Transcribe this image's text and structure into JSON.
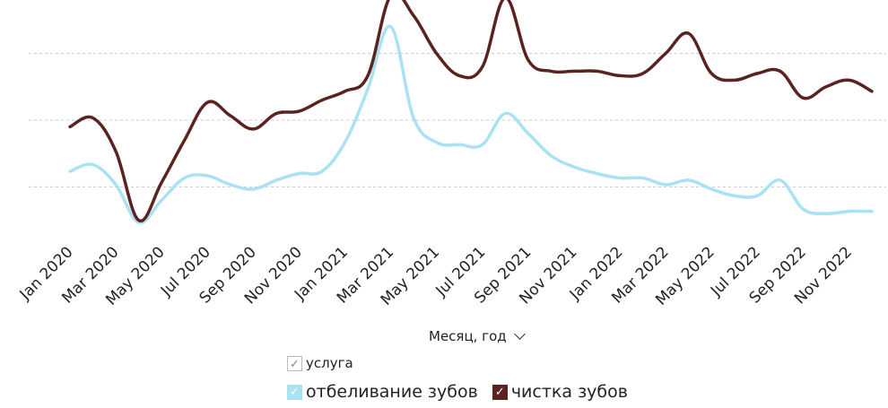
{
  "chart_data": {
    "type": "line",
    "title": "",
    "xlabel": "Месяц, год",
    "ylabel": "",
    "ylim": [
      0,
      100
    ],
    "grid": true,
    "legend_position": "bottom",
    "legend_title": "услуга",
    "tick_labels": [
      "Jan 2020",
      "Mar 2020",
      "May 2020",
      "Jul 2020",
      "Sep 2020",
      "Nov 2020",
      "Jan 2021",
      "Mar 2021",
      "May 2021",
      "Jul 2021",
      "Sep 2021",
      "Nov 2021",
      "Jan 2022",
      "Mar 2022",
      "May 2022",
      "Jul 2022",
      "Sep 2022",
      "Nov 2022"
    ],
    "x": [
      "2020-01",
      "2020-02",
      "2020-03",
      "2020-04",
      "2020-05",
      "2020-06",
      "2020-07",
      "2020-08",
      "2020-09",
      "2020-10",
      "2020-11",
      "2020-12",
      "2021-01",
      "2021-02",
      "2021-03",
      "2021-04",
      "2021-05",
      "2021-06",
      "2021-07",
      "2021-08",
      "2021-09",
      "2021-10",
      "2021-11",
      "2021-12",
      "2022-01",
      "2022-02",
      "2022-03",
      "2022-04",
      "2022-05",
      "2022-06",
      "2022-07",
      "2022-08",
      "2022-09",
      "2022-10",
      "2022-11",
      "2022-12"
    ],
    "series": [
      {
        "name": "отбеливание зубов",
        "color": "#a9e2f3",
        "values": [
          27,
          30,
          21,
          4,
          14,
          24,
          25,
          21,
          19,
          23,
          26,
          27,
          40,
          64,
          92,
          51,
          40,
          39,
          39,
          53,
          44,
          34,
          29,
          26,
          24,
          24,
          21,
          23,
          19,
          16,
          16,
          23,
          10,
          8,
          9,
          9
        ]
      },
      {
        "name": "чистка зубов",
        "color": "#5a2320",
        "values": [
          47,
          51,
          36,
          5,
          22,
          41,
          58,
          52,
          46,
          53,
          54,
          59,
          63,
          70,
          106,
          97,
          80,
          70,
          74,
          105,
          77,
          72,
          72,
          72,
          70,
          71,
          80,
          89,
          71,
          68,
          71,
          72,
          60,
          65,
          68,
          63
        ]
      }
    ]
  },
  "legend": {
    "title": "услуга",
    "items": [
      {
        "label": "отбеливание зубов",
        "color": "#a9e2f3"
      },
      {
        "label": "чистка зубов",
        "color": "#5a2320"
      }
    ]
  },
  "axis_title": "Месяц, год",
  "icons": {
    "dropdown": "chevron-down-icon",
    "check": "check-icon"
  }
}
